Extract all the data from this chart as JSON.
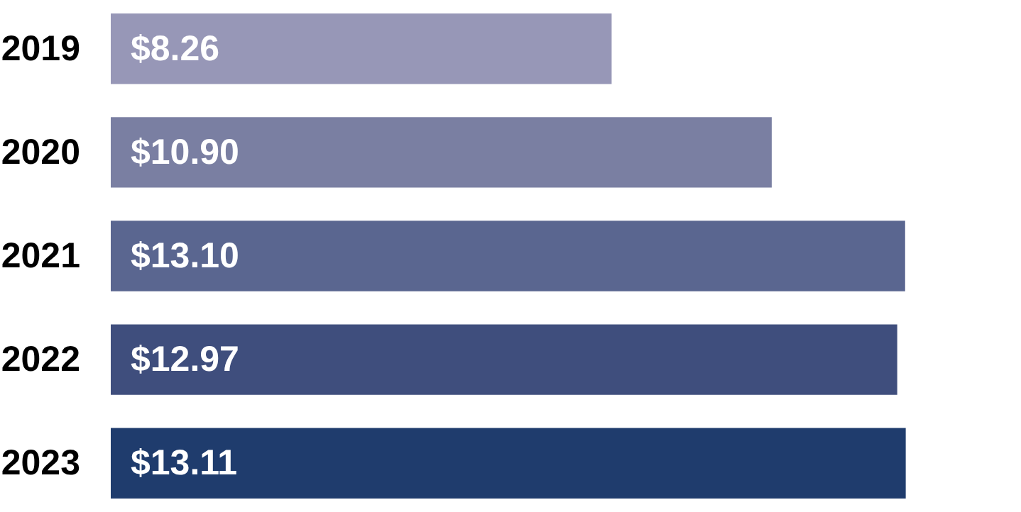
{
  "chart_data": {
    "type": "bar",
    "orientation": "horizontal",
    "categories": [
      "2019",
      "2020",
      "2021",
      "2022",
      "2023"
    ],
    "values": [
      8.26,
      10.9,
      13.1,
      12.97,
      13.11
    ],
    "value_labels": [
      "$8.26",
      "$10.90",
      "$13.10",
      "$12.97",
      "$13.11"
    ],
    "colors": [
      "#9797b7",
      "#7a7fa2",
      "#5a6690",
      "#3f4e7d",
      "#1f3c6d"
    ]
  }
}
